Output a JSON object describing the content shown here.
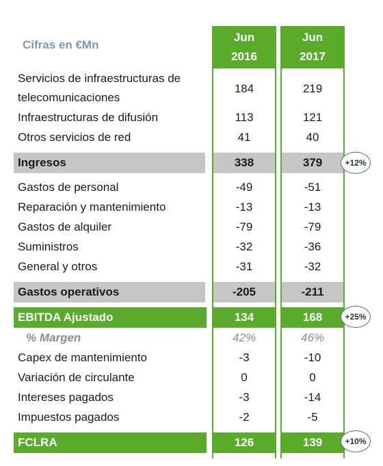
{
  "caption": "Cifras en €Mn",
  "columns": [
    {
      "line1": "Jun",
      "line2": "2016"
    },
    {
      "line1": "Jun",
      "line2": "2017"
    }
  ],
  "rows": {
    "infra_tel": {
      "label_l1": "Servicios de infraestructuras de",
      "label_l2": "telecomunicaciones",
      "v2016": "184",
      "v2017": "219"
    },
    "difusion": {
      "label": "Infraestructuras de difusión",
      "v2016": "113",
      "v2017": "121"
    },
    "otros_red": {
      "label": "Otros servicios de red",
      "v2016": "41",
      "v2017": "40"
    },
    "ingresos": {
      "label": "Ingresos",
      "v2016": "338",
      "v2017": "379",
      "growth": "+12%"
    },
    "personal": {
      "label": "Gastos de personal",
      "v2016": "-49",
      "v2017": "-51"
    },
    "reparacion": {
      "label": "Reparación y mantenimiento",
      "v2016": "-13",
      "v2017": "-13"
    },
    "alquiler": {
      "label": "Gastos de alquiler",
      "v2016": "-79",
      "v2017": "-79"
    },
    "suministros": {
      "label": "Suministros",
      "v2016": "-32",
      "v2017": "-36"
    },
    "general": {
      "label": "General y otros",
      "v2016": "-31",
      "v2017": "-32"
    },
    "gastos_op": {
      "label": "Gastos operativos",
      "v2016": "-205",
      "v2017": "-211"
    },
    "ebitda": {
      "label": "EBITDA Ajustado",
      "v2016": "134",
      "v2017": "168",
      "growth": "+25%"
    },
    "margen": {
      "label": "% Margen",
      "v2016": "42%",
      "v2017": "46%"
    },
    "capex": {
      "label": "Capex de mantenimiento",
      "v2016": "-3",
      "v2017": "-10"
    },
    "circulante": {
      "label": "Variación de circulante",
      "v2016": "0",
      "v2017": "0"
    },
    "intereses": {
      "label": "Intereses pagados",
      "v2016": "-3",
      "v2017": "-14"
    },
    "impuestos": {
      "label": "Impuestos pagados",
      "v2016": "-2",
      "v2017": "-5"
    },
    "fclra": {
      "label": "FCLRA",
      "v2016": "126",
      "v2017": "139",
      "growth": "+10%"
    }
  },
  "colors": {
    "green": "#5aaa2c",
    "gray_band": "#c6c6c6",
    "caption": "#7f98b0"
  }
}
